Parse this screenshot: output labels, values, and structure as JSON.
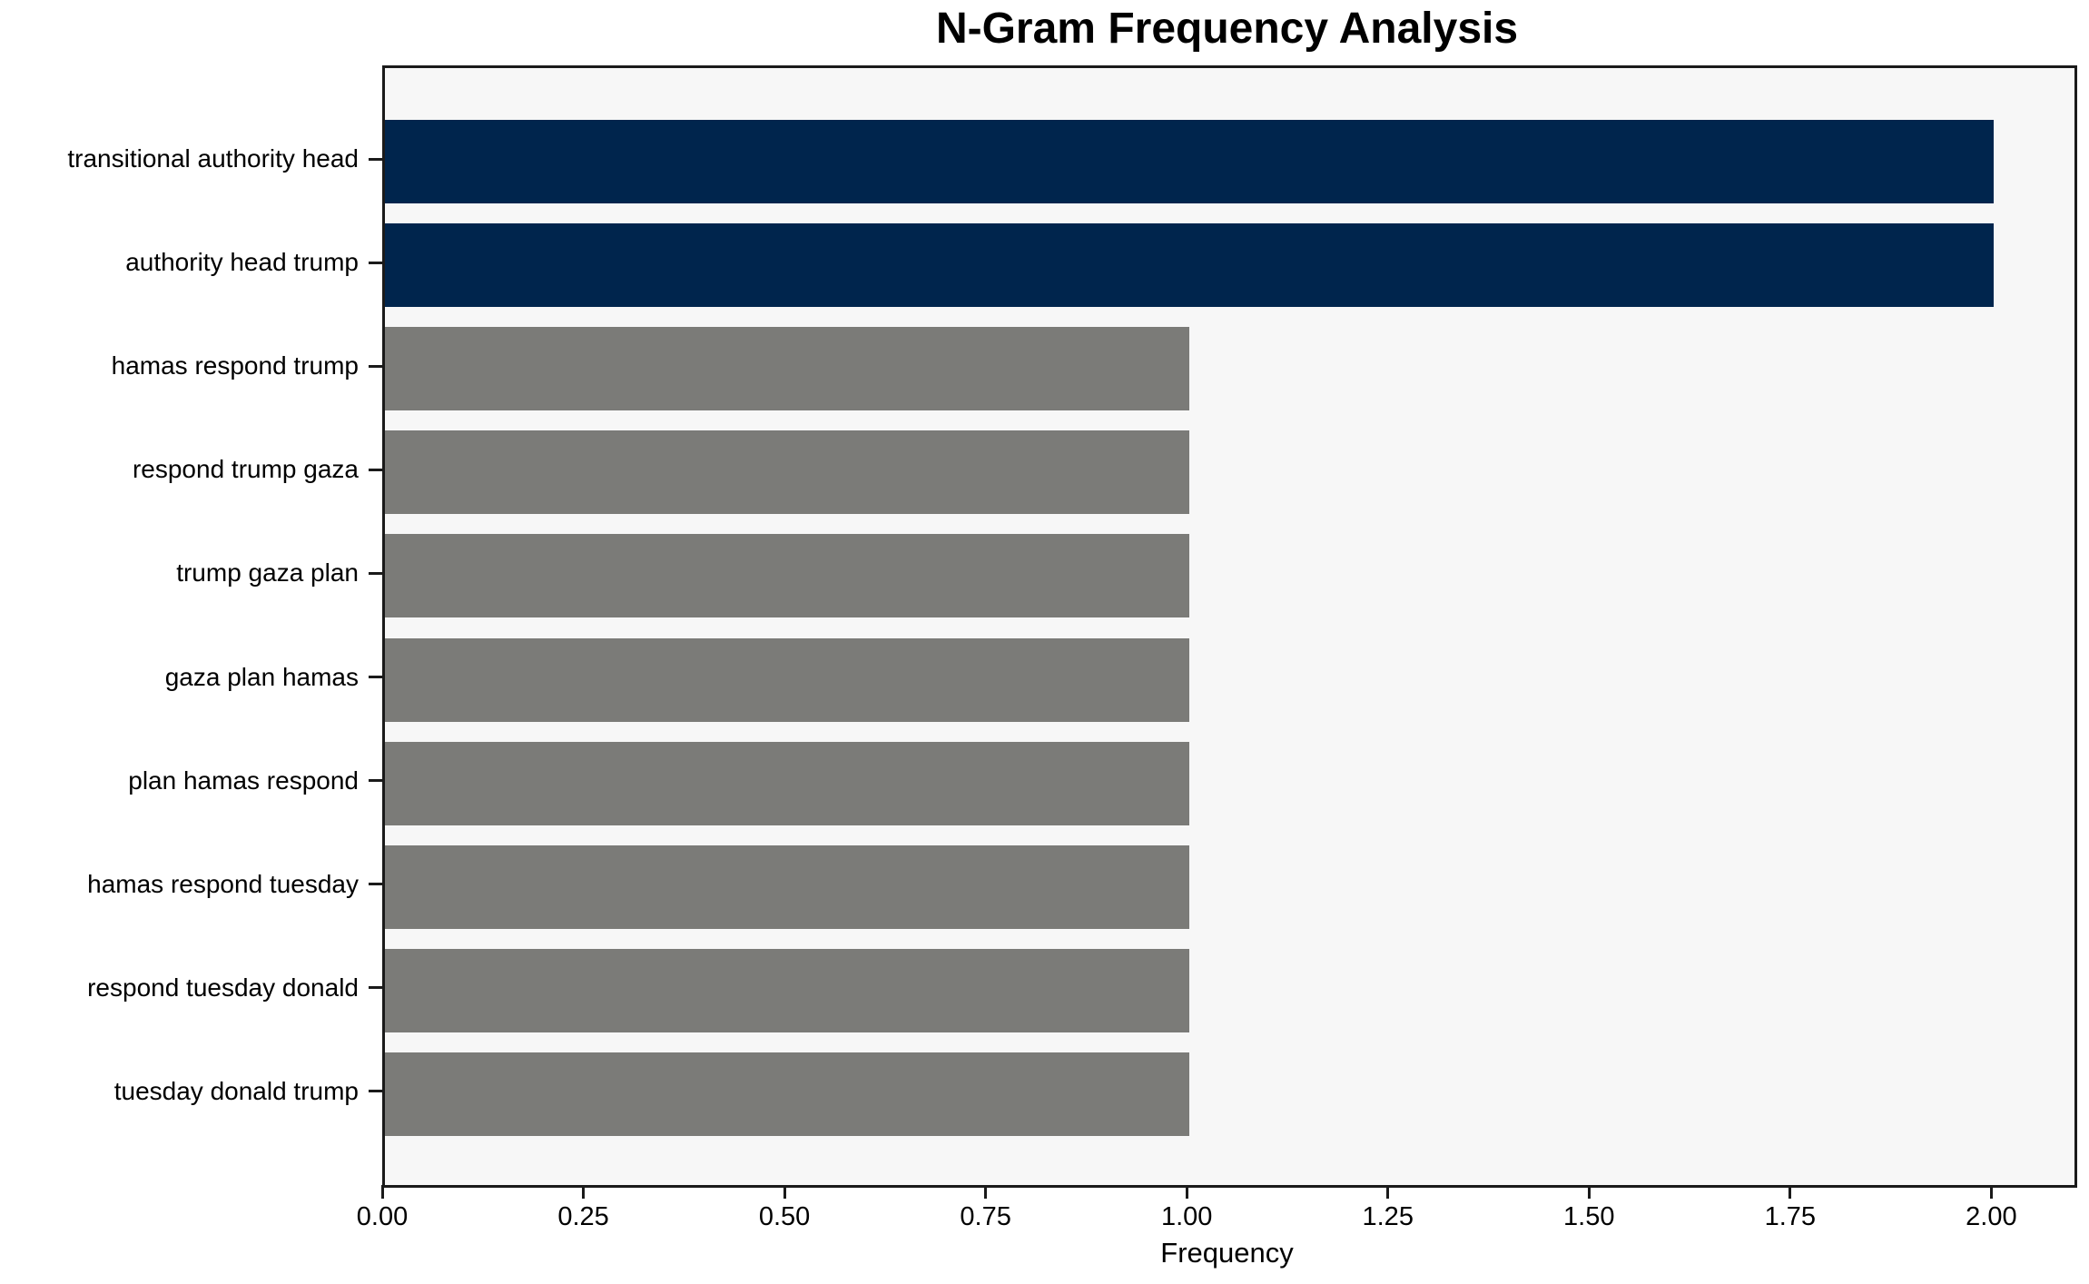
{
  "chart_data": {
    "type": "bar",
    "orientation": "horizontal",
    "title": "N-Gram Frequency Analysis",
    "xlabel": "Frequency",
    "ylabel": "",
    "categories": [
      "transitional authority head",
      "authority head trump",
      "hamas respond trump",
      "respond trump gaza",
      "trump gaza plan",
      "gaza plan hamas",
      "plan hamas respond",
      "hamas respond tuesday",
      "respond tuesday donald",
      "tuesday donald trump"
    ],
    "values": [
      2,
      2,
      1,
      1,
      1,
      1,
      1,
      1,
      1,
      1
    ],
    "bar_colors": [
      "#00254d",
      "#00254d",
      "#7b7b78",
      "#7b7b78",
      "#7b7b78",
      "#7b7b78",
      "#7b7b78",
      "#7b7b78",
      "#7b7b78",
      "#7b7b78"
    ],
    "xlim": [
      0,
      2.1
    ],
    "xtick_values": [
      0,
      0.25,
      0.5,
      0.75,
      1.0,
      1.25,
      1.5,
      1.75,
      2.0
    ],
    "xtick_labels": [
      "0.00",
      "0.25",
      "0.50",
      "0.75",
      "1.00",
      "1.25",
      "1.50",
      "1.75",
      "2.00"
    ],
    "grid": false,
    "legend": null,
    "colors": {
      "highlight_bar": "#00254d",
      "default_bar": "#7b7b78",
      "plot_background": "#f7f7f7",
      "figure_background": "#ffffff",
      "spine": "#1a1a1a",
      "text": "#000000"
    }
  }
}
